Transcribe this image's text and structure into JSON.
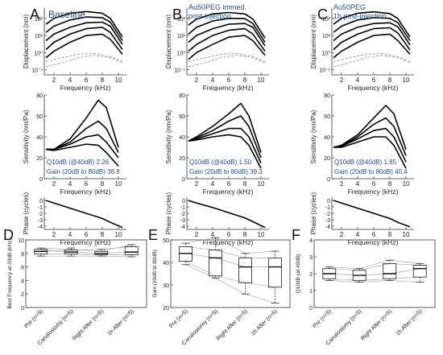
{
  "figure": {
    "panel_letters": [
      "A",
      "B",
      "C",
      "D",
      "E",
      "F"
    ],
    "top_panels": [
      {
        "letter": "A",
        "title_lines": [
          "Baseline"
        ],
        "q10_label": "Q10dB (@40dB) 2.26",
        "gain_label": "Gain (20dB to 80dB) 38.8"
      },
      {
        "letter": "B",
        "title_lines": [
          "Au50PEG immed.",
          "post-injection"
        ],
        "q10_label": "Q10dB (@40dB) 1.50",
        "gain_label": "Gain (20dB to 80dB) 39.3"
      },
      {
        "letter": "C",
        "title_lines": [
          "Au50PEG",
          "1h post-injection"
        ],
        "q10_label": "Q10dB (@40dB) 1.85",
        "gain_label": "Gain (20dB to 80dB) 40.4"
      }
    ],
    "rows": {
      "displacement": {
        "ylabel": "Displacement (nm)",
        "yticks": [
          "10²",
          "10¹",
          "10⁰",
          "10⁻¹"
        ]
      },
      "sensitivity": {
        "ylabel": "Sensitivity (nm/Pa)",
        "yticks": [
          "80",
          "60",
          "40",
          "20",
          "0"
        ]
      },
      "phase": {
        "ylabel": "Phase (cycles)",
        "yticks": [
          "0",
          "-1",
          "-2",
          "-3",
          "-4"
        ]
      }
    },
    "xlabel": "Frequency (kHz)",
    "xticks": [
      "2",
      "4",
      "6",
      "8",
      "10"
    ],
    "box_xticks": [
      "Pre (n=5)",
      "Canalostomy (n=5)",
      "Right After (n=5)",
      "1h After (n=5)"
    ]
  },
  "chart_data": [
    {
      "panel": "A",
      "type": "line",
      "ylabel": "Displacement (nm)",
      "xlabel": "Frequency (kHz)",
      "yscale": "log",
      "series": [
        {
          "name": "",
          "x": [
            1,
            2,
            4,
            6,
            8,
            9,
            10.5
          ],
          "y": [
            0.5,
            1.2,
            4,
            10,
            12,
            6,
            0.8
          ]
        },
        {
          "name": "",
          "x": [
            1,
            2,
            4,
            6,
            8,
            9,
            10.5
          ],
          "y": [
            1.5,
            4,
            12,
            25,
            30,
            15,
            1.5
          ]
        },
        {
          "name": "",
          "x": [
            1,
            2,
            4,
            6,
            8,
            9,
            10.5
          ],
          "y": [
            5,
            12,
            30,
            55,
            60,
            35,
            3
          ]
        },
        {
          "name": "",
          "x": [
            1,
            2,
            4,
            6,
            8,
            9,
            10.5
          ],
          "y": [
            15,
            35,
            80,
            120,
            110,
            60,
            5
          ]
        },
        {
          "name": "",
          "x": [
            1,
            2,
            4,
            6,
            8,
            9,
            10.5
          ],
          "y": [
            45,
            100,
            200,
            250,
            200,
            100,
            8
          ]
        }
      ]
    },
    {
      "panel": "A",
      "type": "line",
      "ylabel": "Sensitivity (nm/Pa)",
      "xlabel": "Frequency (kHz)",
      "ylim": [
        0,
        80
      ],
      "series": [
        {
          "name": "",
          "x": [
            1,
            2,
            4,
            6,
            7.5,
            8.5,
            10
          ],
          "y": [
            28,
            28,
            38,
            58,
            75,
            68,
            30
          ]
        },
        {
          "name": "",
          "x": [
            1,
            2,
            4,
            6,
            7.5,
            8.5,
            10
          ],
          "y": [
            28,
            28,
            35,
            48,
            55,
            48,
            25
          ]
        },
        {
          "name": "",
          "x": [
            1,
            2,
            4,
            6,
            7.5,
            8.5,
            10
          ],
          "y": [
            28,
            28,
            33,
            40,
            42,
            35,
            20
          ]
        },
        {
          "name": "",
          "x": [
            1,
            2,
            4,
            6,
            7.5,
            8.5,
            10
          ],
          "y": [
            28,
            27,
            30,
            33,
            32,
            25,
            12
          ]
        }
      ]
    },
    {
      "panel": "A",
      "type": "line",
      "ylabel": "Phase (cycles)",
      "xlabel": "Frequency (kHz)",
      "ylim": [
        -4.5,
        0.5
      ],
      "series": [
        {
          "name": "",
          "x": [
            1,
            2,
            4,
            6,
            8,
            9,
            10.5
          ],
          "y": [
            0,
            -0.4,
            -1.2,
            -2.0,
            -2.8,
            -3.4,
            -4.2
          ]
        }
      ]
    },
    {
      "panel": "B",
      "type": "line",
      "ylabel": "Displacement (nm)",
      "xlabel": "Frequency (kHz)",
      "yscale": "log",
      "series": [
        {
          "name": "",
          "x": [
            1,
            2,
            4,
            6,
            8,
            9,
            10.5
          ],
          "y": [
            0.4,
            1,
            3,
            8,
            10,
            5,
            0.7
          ]
        },
        {
          "name": "",
          "x": [
            1,
            2,
            4,
            6,
            8,
            9,
            10.5
          ],
          "y": [
            1.2,
            3,
            10,
            20,
            25,
            12,
            1.2
          ]
        },
        {
          "name": "",
          "x": [
            1,
            2,
            4,
            6,
            8,
            9,
            10.5
          ],
          "y": [
            4,
            10,
            25,
            45,
            50,
            30,
            2.5
          ]
        },
        {
          "name": "",
          "x": [
            1,
            2,
            4,
            6,
            8,
            9,
            10.5
          ],
          "y": [
            12,
            30,
            70,
            100,
            95,
            50,
            4
          ]
        },
        {
          "name": "",
          "x": [
            1,
            2,
            4,
            6,
            8,
            9,
            10.5
          ],
          "y": [
            40,
            90,
            180,
            220,
            180,
            90,
            7
          ]
        }
      ]
    },
    {
      "panel": "B",
      "type": "line",
      "ylabel": "Sensitivity (nm/Pa)",
      "xlabel": "Frequency (kHz)",
      "ylim": [
        0,
        80
      ],
      "series": [
        {
          "name": "",
          "x": [
            1,
            2,
            4,
            6,
            7.5,
            8.5,
            10
          ],
          "y": [
            36,
            40,
            50,
            62,
            72,
            60,
            25
          ]
        },
        {
          "name": "",
          "x": [
            1,
            2,
            4,
            6,
            7.5,
            8.5,
            10
          ],
          "y": [
            36,
            39,
            46,
            55,
            60,
            50,
            20
          ]
        },
        {
          "name": "",
          "x": [
            1,
            2,
            4,
            6,
            7.5,
            8.5,
            10
          ],
          "y": [
            36,
            38,
            43,
            48,
            48,
            40,
            15
          ]
        },
        {
          "name": "",
          "x": [
            1,
            2,
            4,
            6,
            7.5,
            8.5,
            10
          ],
          "y": [
            36,
            37,
            40,
            42,
            40,
            32,
            10
          ]
        }
      ]
    },
    {
      "panel": "B",
      "type": "line",
      "ylabel": "Phase (cycles)",
      "xlabel": "Frequency (kHz)",
      "ylim": [
        -4.5,
        0.5
      ],
      "series": [
        {
          "name": "",
          "x": [
            1,
            2,
            4,
            6,
            8,
            9,
            10.5
          ],
          "y": [
            0,
            -0.4,
            -1.1,
            -1.9,
            -2.7,
            -3.3,
            -4.2
          ]
        }
      ]
    },
    {
      "panel": "C",
      "type": "line",
      "ylabel": "Displacement (nm)",
      "xlabel": "Frequency (kHz)",
      "yscale": "log",
      "series": [
        {
          "name": "",
          "x": [
            1,
            2,
            4,
            6,
            8,
            9,
            10.5
          ],
          "y": [
            0.5,
            1.2,
            4,
            10,
            12,
            5,
            0.8
          ]
        },
        {
          "name": "",
          "x": [
            1,
            2,
            4,
            6,
            8,
            9,
            10.5
          ],
          "y": [
            1.5,
            4,
            12,
            25,
            28,
            14,
            1.4
          ]
        },
        {
          "name": "",
          "x": [
            1,
            2,
            4,
            6,
            8,
            9,
            10.5
          ],
          "y": [
            5,
            12,
            30,
            50,
            55,
            32,
            2.8
          ]
        },
        {
          "name": "",
          "x": [
            1,
            2,
            4,
            6,
            8,
            9,
            10.5
          ],
          "y": [
            15,
            35,
            80,
            110,
            100,
            55,
            5
          ]
        },
        {
          "name": "",
          "x": [
            1,
            2,
            4,
            6,
            8,
            9,
            10.5
          ],
          "y": [
            45,
            100,
            200,
            240,
            190,
            95,
            8
          ]
        }
      ]
    },
    {
      "panel": "C",
      "type": "line",
      "ylabel": "Sensitivity (nm/Pa)",
      "xlabel": "Frequency (kHz)",
      "ylim": [
        0,
        80
      ],
      "series": [
        {
          "name": "",
          "x": [
            1,
            2,
            4,
            6,
            7.5,
            8.5,
            10
          ],
          "y": [
            30,
            32,
            42,
            58,
            70,
            62,
            28
          ]
        },
        {
          "name": "",
          "x": [
            1,
            2,
            4,
            6,
            7.5,
            8.5,
            10
          ],
          "y": [
            30,
            31,
            40,
            52,
            58,
            50,
            22
          ]
        },
        {
          "name": "",
          "x": [
            1,
            2,
            4,
            6,
            7.5,
            8.5,
            10
          ],
          "y": [
            30,
            31,
            38,
            46,
            48,
            40,
            16
          ]
        },
        {
          "name": "",
          "x": [
            1,
            2,
            4,
            6,
            7.5,
            8.5,
            10
          ],
          "y": [
            30,
            30,
            35,
            40,
            40,
            32,
            10
          ]
        }
      ]
    },
    {
      "panel": "C",
      "type": "line",
      "ylabel": "Phase (cycles)",
      "xlabel": "Frequency (kHz)",
      "ylim": [
        -4.5,
        0.5
      ],
      "series": [
        {
          "name": "",
          "x": [
            1,
            2,
            4,
            6,
            8,
            9,
            10.5
          ],
          "y": [
            0,
            -0.4,
            -1.2,
            -2.0,
            -2.8,
            -3.4,
            -4.1
          ]
        }
      ]
    },
    {
      "panel": "D",
      "type": "box",
      "ylabel": "Best Frequency at 20dB (kHz)",
      "ylim": [
        0,
        10
      ],
      "yticks": [
        0,
        2,
        4,
        6,
        8,
        10
      ],
      "categories": [
        "Pre (n=5)",
        "Canalostomy (n=5)",
        "Right After (n=5)",
        "1h After (n=5)"
      ],
      "boxes": [
        {
          "min": 7.6,
          "q1": 7.9,
          "median": 8.3,
          "q3": 8.6,
          "max": 8.8
        },
        {
          "min": 7.6,
          "q1": 7.9,
          "median": 8.2,
          "q3": 8.5,
          "max": 8.8
        },
        {
          "min": 7.6,
          "q1": 7.8,
          "median": 8.0,
          "q3": 8.3,
          "max": 8.6
        },
        {
          "min": 7.5,
          "q1": 7.8,
          "median": 8.2,
          "q3": 9.0,
          "max": 9.3
        }
      ],
      "subjects": [
        [
          8.8,
          8.6,
          8.3,
          9.3
        ],
        [
          8.5,
          8.2,
          8.0,
          8.2
        ],
        [
          8.3,
          8.5,
          8.6,
          9.0
        ],
        [
          7.9,
          7.9,
          7.8,
          7.8
        ],
        [
          7.6,
          7.6,
          7.6,
          7.5
        ]
      ]
    },
    {
      "panel": "E",
      "type": "box",
      "ylabel": "Gain (20dB to 80dB)",
      "ylim": [
        20,
        50
      ],
      "yticks": [
        20,
        30,
        40,
        50
      ],
      "categories": [
        "Pre (n=5)",
        "Canalostomy (n=5)",
        "Right After (n=5)",
        "1h After (n=5)"
      ],
      "boxes": [
        {
          "min": 39,
          "q1": 40.5,
          "median": 44,
          "q3": 47,
          "max": 48.5
        },
        {
          "min": 33,
          "q1": 34,
          "median": 42,
          "q3": 45.5,
          "max": 51
        },
        {
          "min": 26,
          "q1": 31,
          "median": 38,
          "q3": 42,
          "max": 44
        },
        {
          "min": 22,
          "q1": 29,
          "median": 38,
          "q3": 42,
          "max": 45
        }
      ],
      "subjects": [
        [
          48.5,
          51,
          44,
          45
        ],
        [
          47,
          45.5,
          42,
          42
        ],
        [
          44,
          42,
          38,
          38
        ],
        [
          40.5,
          34,
          31,
          29
        ],
        [
          39,
          33,
          26,
          22
        ]
      ]
    },
    {
      "panel": "F",
      "type": "box",
      "ylabel": "Q10dB (at 40dB)",
      "ylim": [
        0,
        4
      ],
      "yticks": [
        0,
        1,
        2,
        3,
        4
      ],
      "categories": [
        "Pre (n=5)",
        "Canalostomy (n=5)",
        "Right After (n=5)",
        "1h After (n=5)"
      ],
      "boxes": [
        {
          "min": 1.6,
          "q1": 1.7,
          "median": 2.0,
          "q3": 2.3,
          "max": 2.4
        },
        {
          "min": 1.5,
          "q1": 1.6,
          "median": 1.9,
          "q3": 2.2,
          "max": 2.3
        },
        {
          "min": 1.6,
          "q1": 1.7,
          "median": 2.0,
          "q3": 2.6,
          "max": 2.8
        },
        {
          "min": 1.5,
          "q1": 1.8,
          "median": 2.3,
          "q3": 2.5,
          "max": 2.6
        }
      ],
      "subjects": [
        [
          2.4,
          2.3,
          2.8,
          2.6
        ],
        [
          2.3,
          2.2,
          2.6,
          2.5
        ],
        [
          2.0,
          1.9,
          2.0,
          2.3
        ],
        [
          1.7,
          1.6,
          1.7,
          1.8
        ],
        [
          1.6,
          1.5,
          1.6,
          1.5
        ]
      ]
    }
  ]
}
